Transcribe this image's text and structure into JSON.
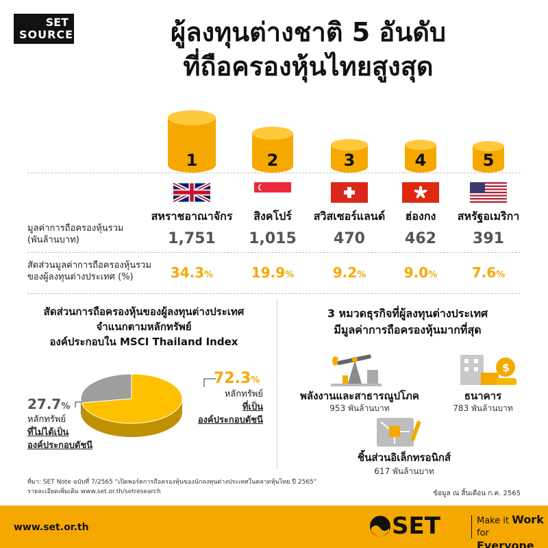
{
  "brand_logo": {
    "line1": "SET",
    "line2": "SOURCE"
  },
  "title": {
    "line1": "ผู้ลงทุนต่างชาติ 5 อันดับ",
    "line2": "ที่ถือครองหุ้นไทยสูงสุด"
  },
  "row_labels": {
    "value": [
      "มูลค่าการถือครองหุ้นรวม",
      "(พันล้านบาท)"
    ],
    "share": [
      "สัดส่วนมูลค่าการถือครองหุ้นรวม",
      "ของผู้ลงทุนต่างประเทศ (%)"
    ]
  },
  "chart_data": {
    "type": "bar",
    "categories": [
      "สหราชอาณาจักร",
      "สิงคโปร์",
      "สวิสเซอร์แลนด์",
      "ฮ่องกง",
      "สหรัฐอเมริกา"
    ],
    "ranks": [
      "1",
      "2",
      "3",
      "4",
      "5"
    ],
    "flags": [
      "uk-flag-icon",
      "singapore-flag-icon",
      "switzerland-flag-icon",
      "hong-kong-flag-icon",
      "usa-flag-icon"
    ],
    "values": [
      1751,
      1015,
      470,
      462,
      391
    ],
    "value_labels": [
      "1,751",
      "1,015",
      "470",
      "462",
      "391"
    ],
    "share_values": [
      34.3,
      19.9,
      9.2,
      9.0,
      7.6
    ],
    "share_labels": [
      "34.3",
      "19.9",
      "9.2",
      "9.0",
      "7.6"
    ],
    "share_unit": "%",
    "colors": {
      "bar": "#f5a800",
      "bar_top": "#ffc93c"
    }
  },
  "pie_section": {
    "title": [
      "สัดส่วนการถือครองหุ้นของผู้ลงทุนต่างประเทศ",
      "จำแนกตามหลักทรัพย์",
      "องค์ประกอบใน MSCI Thailand Index"
    ],
    "chart_data": {
      "type": "pie",
      "slices": [
        {
          "label": "องค์ประกอบดัชนี",
          "value": 72.3,
          "color": "#ffc000"
        },
        {
          "label": "ไม่ได้เป็นองค์ประกอบดัชนี",
          "value": 27.7,
          "color": "#9e9e9e"
        }
      ]
    },
    "in_index": {
      "value": "72.3",
      "unit": "%",
      "line1": "หลักทรัพย์",
      "line2": "ที่เป็น",
      "line3": "องค์ประกอบดัชนี"
    },
    "not_in_index": {
      "value": "27.7",
      "unit": "%",
      "line1": "หลักทรัพย์",
      "line2": "ที่ไม่ได้เป็น",
      "line3": "องค์ประกอบดัชนี"
    }
  },
  "business_section": {
    "title": [
      "3 หมวดธุรกิจที่ผู้ลงทุนต่างประเทศ",
      "มีมูลค่าการถือครองหุ้นมากที่สุด"
    ],
    "items": [
      {
        "icon": "oil-pump-icon",
        "name": "พลังงานและสาธารณูปโภค",
        "value": "953 พันล้านบาท"
      },
      {
        "icon": "bank-coins-icon",
        "name": "ธนาคาร",
        "value": "783 พันล้านบาท"
      },
      {
        "icon": "circuit-board-icon",
        "name": "ชิ้นส่วนอิเล็กทรอนิกส์",
        "value": "617 พันล้านบาท"
      }
    ]
  },
  "source_note": {
    "line1": "ที่มา: SET Note ฉบับที่ 7/2565 “เปิดพอร์ตการถือครองหุ้นของนักลงทุนต่างประเทศในตลาดหุ้นไทย ปี 2565”",
    "line2": "รายละเอียดเพิ่มเติม www.set.or.th/setresearch"
  },
  "as_of": "ข้อมูล ณ สิ้นเดือน ก.ค. 2565",
  "footer": {
    "site": "www.set.or.th",
    "brand": "SET",
    "slogan1_a": "Make it ",
    "slogan1_b": "Work",
    "slogan2_a": "for ",
    "slogan2_b": "Everyone",
    "color": "#f5a800"
  }
}
